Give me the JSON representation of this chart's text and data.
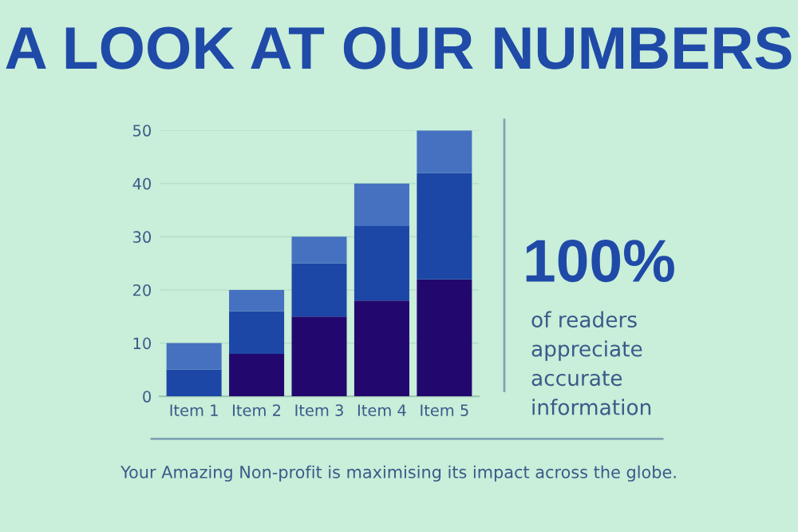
{
  "chart_data": {
    "type": "bar",
    "title": "A LOOK AT OUR NUMBERS",
    "stacked": true,
    "categories": [
      "Item 1",
      "Item 2",
      "Item 3",
      "Item 4",
      "Item 5"
    ],
    "series": [
      {
        "color": "#22086e",
        "values": [
          0,
          8,
          15,
          18,
          22
        ]
      },
      {
        "color": "#1c47a6",
        "values": [
          5,
          8,
          10,
          14,
          20
        ]
      },
      {
        "color": "#4671c0",
        "values": [
          5,
          4,
          5,
          8,
          8
        ]
      }
    ],
    "ylim": [
      0,
      50
    ],
    "yticks": [
      0,
      10,
      20,
      30,
      40,
      50
    ],
    "grid": "y",
    "legend": false,
    "annotations": [
      "100%",
      "of readers\nappreciate\naccurate\ninformation",
      "Your Amazing Non-profit is maximising its impact across the globe."
    ]
  }
}
